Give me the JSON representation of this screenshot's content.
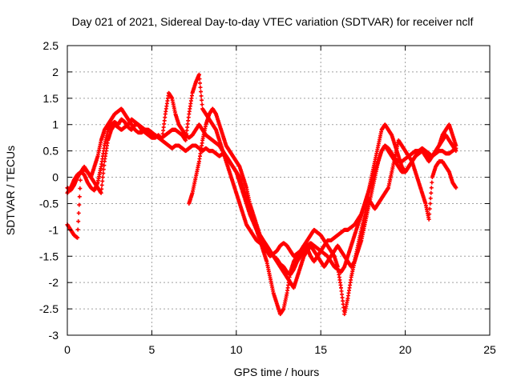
{
  "chart_data": {
    "type": "scatter",
    "title": "Day 021 of 2021, Sidereal Day-to-day VTEC variation (SDTVAR) for receiver nclf",
    "xlabel": "GPS time / hours",
    "ylabel": "SDTVAR / TECUs",
    "xlim": [
      0,
      25
    ],
    "ylim": [
      -3,
      2.5
    ],
    "xticks": [
      "0",
      "5",
      "10",
      "15",
      "20",
      "25"
    ],
    "yticks": [
      "-3",
      "-2.5",
      "-2",
      "-1.5",
      "-1",
      "-0.5",
      "0",
      "0.5",
      "1",
      "1.5",
      "2",
      "2.5"
    ],
    "grid": true,
    "marker": "plus",
    "color": "#ff0000",
    "series": [
      {
        "name": "trace-a",
        "x": [
          0.0,
          0.2,
          0.4,
          0.6,
          0.8,
          1.0,
          1.2,
          1.4,
          1.6,
          1.8,
          2.0,
          2.2,
          2.4,
          2.6,
          2.8,
          3.0,
          3.2,
          3.4,
          3.6,
          3.8,
          4.0,
          4.2,
          4.4,
          4.6,
          4.8,
          5.0,
          5.2,
          5.4,
          5.6,
          5.8,
          6.0,
          6.2,
          6.4,
          6.6,
          6.8,
          7.0,
          7.2,
          7.4,
          7.6,
          7.8,
          8.0,
          8.2,
          8.4,
          8.6,
          8.8,
          9.0,
          9.2,
          9.4,
          9.6,
          9.8,
          10.0,
          10.2,
          10.4,
          10.6,
          10.8,
          11.0,
          11.2,
          11.4,
          11.6,
          11.8,
          12.0,
          12.2,
          12.4,
          12.6,
          12.8,
          13.0,
          13.2,
          13.4,
          13.6,
          13.8,
          14.0,
          14.2,
          14.4,
          14.6,
          14.8,
          15.0,
          15.2,
          15.4,
          15.6,
          15.8,
          16.0,
          16.2,
          16.4,
          16.6,
          16.8,
          17.0,
          17.2,
          17.4,
          17.6,
          17.8,
          18.0,
          18.2,
          18.4,
          18.6,
          18.8,
          19.0,
          19.2,
          19.4,
          19.6,
          19.8,
          20.0,
          20.2,
          20.4,
          20.6,
          20.8,
          21.0,
          21.2,
          21.4,
          21.6,
          21.8,
          22.0,
          22.2,
          22.4,
          22.6,
          22.8,
          23.0
        ],
        "y": [
          -0.2,
          -0.25,
          -0.15,
          0.0,
          0.1,
          0.05,
          -0.1,
          -0.2,
          -0.25,
          -0.1,
          0.2,
          0.6,
          0.9,
          1.0,
          1.05,
          1.0,
          1.1,
          1.05,
          0.95,
          0.9,
          1.0,
          1.0,
          0.9,
          0.85,
          0.8,
          0.75,
          0.75,
          0.8,
          0.7,
          0.65,
          0.6,
          0.55,
          0.6,
          0.6,
          0.55,
          0.5,
          0.55,
          0.6,
          0.6,
          0.55,
          0.5,
          0.55,
          0.5,
          0.5,
          0.45,
          0.4,
          0.45,
          0.4,
          0.3,
          0.2,
          0.1,
          -0.1,
          -0.3,
          -0.5,
          -0.7,
          -0.85,
          -1.0,
          -1.1,
          -1.2,
          -1.3,
          -1.4,
          -1.5,
          -1.55,
          -1.65,
          -1.7,
          -1.8,
          -1.85,
          -1.75,
          -1.6,
          -1.5,
          -1.4,
          -1.3,
          -1.25,
          -1.3,
          -1.35,
          -1.4,
          -1.3,
          -1.2,
          -1.2,
          -1.15,
          -1.1,
          -1.05,
          -1.0,
          -1.0,
          -0.95,
          -0.9,
          -0.8,
          -0.7,
          -0.5,
          -0.3,
          -0.1,
          0.1,
          0.3,
          0.5,
          0.6,
          0.55,
          0.45,
          0.35,
          0.3,
          0.3,
          0.35,
          0.4,
          0.45,
          0.5,
          0.5,
          0.5,
          0.45,
          0.4,
          0.4,
          0.45,
          0.5,
          0.5,
          0.45,
          0.45,
          0.5,
          0.55
        ]
      },
      {
        "name": "trace-b",
        "x": [
          0.0,
          0.2,
          0.4,
          0.6,
          0.8,
          1.0,
          1.2,
          1.4,
          1.6,
          1.8,
          2.0,
          2.2,
          2.4,
          2.6,
          2.8,
          3.0,
          3.2,
          3.4,
          3.6,
          3.8,
          4.0,
          4.2,
          4.4,
          4.6,
          4.8,
          5.0,
          5.2,
          5.4,
          5.6,
          5.8,
          6.0,
          6.2,
          6.4,
          6.6,
          6.8,
          7.0,
          7.2,
          7.4,
          7.6,
          7.8,
          8.0,
          8.2,
          8.4,
          8.6,
          8.8,
          9.0,
          9.2,
          9.4,
          9.6,
          9.8,
          10.0,
          10.2,
          10.4,
          10.6,
          10.8,
          11.0,
          11.2,
          11.4,
          11.6,
          11.8,
          12.0,
          12.2,
          12.4,
          12.6,
          12.8,
          13.0,
          13.2,
          13.4,
          13.6,
          13.8,
          14.0,
          14.2,
          14.4,
          14.6,
          14.8,
          15.0,
          15.2,
          15.4,
          15.6,
          15.8,
          16.0,
          16.2,
          16.4,
          16.6,
          16.8,
          17.0,
          17.2,
          17.4,
          17.6,
          17.8,
          18.0,
          18.2,
          18.4,
          18.6,
          18.8,
          19.0,
          19.2,
          19.4,
          19.6,
          19.8,
          20.0,
          20.2,
          20.4,
          20.6,
          20.8,
          21.0,
          21.2,
          21.4,
          21.6,
          21.8,
          22.0,
          22.2,
          22.4,
          22.6,
          22.8,
          23.0
        ],
        "y": [
          -0.3,
          -0.2,
          -0.05,
          0.05,
          0.1,
          0.15,
          0.1,
          0.0,
          0.2,
          0.4,
          0.7,
          0.9,
          1.0,
          1.1,
          1.2,
          1.25,
          1.3,
          1.2,
          1.1,
          1.0,
          0.9,
          0.85,
          0.85,
          0.9,
          0.85,
          0.8,
          0.8,
          0.75,
          0.7,
          1.2,
          1.6,
          1.5,
          1.2,
          1.0,
          0.9,
          0.8,
          0.75,
          0.8,
          0.9,
          1.0,
          0.9,
          0.8,
          0.75,
          0.7,
          0.65,
          0.6,
          0.5,
          0.4,
          0.3,
          0.2,
          0.1,
          0.0,
          -0.2,
          -0.4,
          -0.6,
          -0.8,
          -1.0,
          -1.2,
          -1.4,
          -1.6,
          -1.9,
          -2.2,
          -2.4,
          -2.6,
          -2.5,
          -2.2,
          -1.8,
          -1.6,
          -1.5,
          -1.4,
          -1.3,
          -1.35,
          -1.5,
          -1.6,
          -1.5,
          -1.4,
          -1.45,
          -1.5,
          -1.6,
          -1.7,
          -1.75,
          -1.8,
          -1.7,
          -1.5,
          -1.3,
          -1.1,
          -0.9,
          -0.7,
          -0.5,
          -0.3,
          0.0,
          0.3,
          0.6,
          0.9,
          1.0,
          0.9,
          0.8,
          0.6,
          0.4,
          0.2,
          0.1,
          0.2,
          0.3,
          0.4,
          0.5,
          0.55,
          0.5,
          0.45,
          0.4,
          0.5,
          0.6,
          0.8,
          0.9,
          1.0,
          0.8,
          0.6
        ]
      },
      {
        "name": "trace-c",
        "x": [
          0.0,
          0.2,
          0.4,
          0.6,
          0.8,
          1.0,
          1.2,
          1.4,
          1.6,
          1.8,
          2.0,
          2.2,
          2.4,
          2.6,
          2.8,
          3.0,
          3.2,
          3.4,
          3.6,
          3.8,
          4.0,
          4.2,
          4.4,
          4.6,
          4.8,
          5.0,
          5.2,
          5.4,
          5.6,
          5.8,
          6.0,
          6.2,
          6.4,
          6.6,
          6.8,
          7.0,
          7.2,
          7.4,
          7.6,
          7.8,
          8.0,
          8.2,
          8.4,
          8.6,
          8.8,
          9.0,
          9.2,
          9.4,
          9.6,
          9.8,
          10.0,
          10.2,
          10.4,
          10.6,
          10.8,
          11.0,
          11.2,
          11.4,
          11.6,
          11.8,
          12.0,
          12.2,
          12.4,
          12.6,
          12.8,
          13.0,
          13.2,
          13.4,
          13.6,
          13.8,
          14.0,
          14.2,
          14.4,
          14.6,
          14.8,
          15.0,
          15.2,
          15.4,
          15.6,
          15.8,
          16.0,
          16.2,
          16.4,
          16.6,
          16.8,
          17.0,
          17.2,
          17.4,
          17.6,
          17.8,
          18.0,
          18.2,
          18.4,
          18.6,
          18.8,
          19.0,
          19.2,
          19.4,
          19.6,
          19.8,
          20.0,
          20.2,
          20.4,
          20.6,
          20.8,
          21.0,
          21.2,
          21.4,
          21.6,
          21.8,
          22.0,
          22.2,
          22.4,
          22.6,
          22.8,
          23.0
        ],
        "y": [
          -0.9,
          -1.0,
          -1.1,
          -1.15,
          0.1,
          0.2,
          0.1,
          0.0,
          -0.1,
          -0.2,
          -0.3,
          0.3,
          0.7,
          0.9,
          1.0,
          0.95,
          0.9,
          0.95,
          1.0,
          1.1,
          1.05,
          1.0,
          0.95,
          0.9,
          0.9,
          0.85,
          0.8,
          0.75,
          0.75,
          0.8,
          0.85,
          0.9,
          0.9,
          0.85,
          0.8,
          0.7,
          1.2,
          1.6,
          1.8,
          1.95,
          1.3,
          1.2,
          1.1,
          1.0,
          0.9,
          0.7,
          0.5,
          0.3,
          0.1,
          -0.1,
          -0.3,
          -0.5,
          -0.7,
          -0.9,
          -1.0,
          -1.1,
          -1.2,
          -1.25,
          -1.3,
          -1.4,
          -1.5,
          -1.45,
          -1.4,
          -1.3,
          -1.25,
          -1.3,
          -1.4,
          -1.5,
          -1.45,
          -1.4,
          -1.3,
          -1.2,
          -1.1,
          -1.0,
          -1.05,
          -1.1,
          -1.2,
          -1.3,
          -1.4,
          -1.5,
          -1.7,
          -2.1,
          -2.6,
          -2.3,
          -1.9,
          -1.6,
          -1.3,
          -1.0,
          -0.7,
          -0.4,
          -0.5,
          -0.6,
          -0.5,
          -0.4,
          -0.3,
          -0.2,
          0.1,
          0.4,
          0.7,
          0.6,
          0.5,
          0.4,
          0.3,
          0.1,
          -0.1,
          -0.3,
          -0.5,
          -0.8,
          0.0,
          0.2,
          0.3,
          0.3,
          0.2,
          0.1,
          -0.1,
          -0.2
        ]
      },
      {
        "name": "trace-d",
        "x": [
          7.2,
          7.4,
          7.6,
          7.8,
          8.0,
          8.2,
          8.4,
          8.6,
          8.8,
          9.0,
          9.2,
          9.4,
          9.6,
          9.8,
          10.0,
          10.2,
          10.4,
          10.6,
          10.8,
          11.0,
          11.2,
          11.4,
          11.6,
          11.8,
          12.0,
          12.2,
          12.4,
          12.6,
          12.8,
          13.0,
          13.2,
          13.4,
          13.6,
          13.8,
          14.0,
          14.2,
          14.4,
          14.6,
          14.8,
          15.0,
          15.2,
          15.4,
          15.6,
          15.8,
          16.0,
          16.2,
          16.4,
          16.6,
          16.8,
          17.0,
          17.2,
          17.4,
          17.6,
          17.8,
          18.0,
          18.2,
          18.4,
          18.6,
          18.8,
          19.0,
          19.2,
          19.4,
          19.6,
          19.8,
          20.0,
          20.2,
          20.4,
          20.6,
          20.8,
          21.0,
          21.2,
          21.4,
          21.6,
          21.8,
          22.0,
          22.2,
          22.4,
          22.6,
          22.8,
          23.0
        ],
        "y": [
          -0.5,
          -0.3,
          0.0,
          0.3,
          0.7,
          1.0,
          1.2,
          1.3,
          1.2,
          1.0,
          0.8,
          0.6,
          0.5,
          0.4,
          0.3,
          0.2,
          0.0,
          -0.2,
          -0.5,
          -0.7,
          -0.9,
          -1.1,
          -1.2,
          -1.3,
          -1.4,
          -1.5,
          -1.6,
          -1.7,
          -1.8,
          -1.9,
          -2.0,
          -2.1,
          -1.9,
          -1.7,
          -1.5,
          -1.4,
          -1.3,
          -1.4,
          -1.5,
          -1.6,
          -1.7,
          -1.6,
          -1.5,
          -1.4,
          -1.3,
          -1.4,
          -1.5,
          -1.6,
          -1.7,
          -1.6,
          -1.4,
          -1.2,
          -0.9,
          -0.6,
          -0.3,
          0.0,
          0.3,
          0.5,
          0.6,
          0.5,
          0.4,
          0.3,
          0.2,
          0.1,
          0.1,
          0.2,
          0.3,
          0.4,
          0.45,
          0.5,
          0.4,
          0.3,
          0.4,
          0.5,
          0.6,
          0.7,
          0.8,
          0.7,
          0.6,
          0.5
        ]
      }
    ]
  }
}
